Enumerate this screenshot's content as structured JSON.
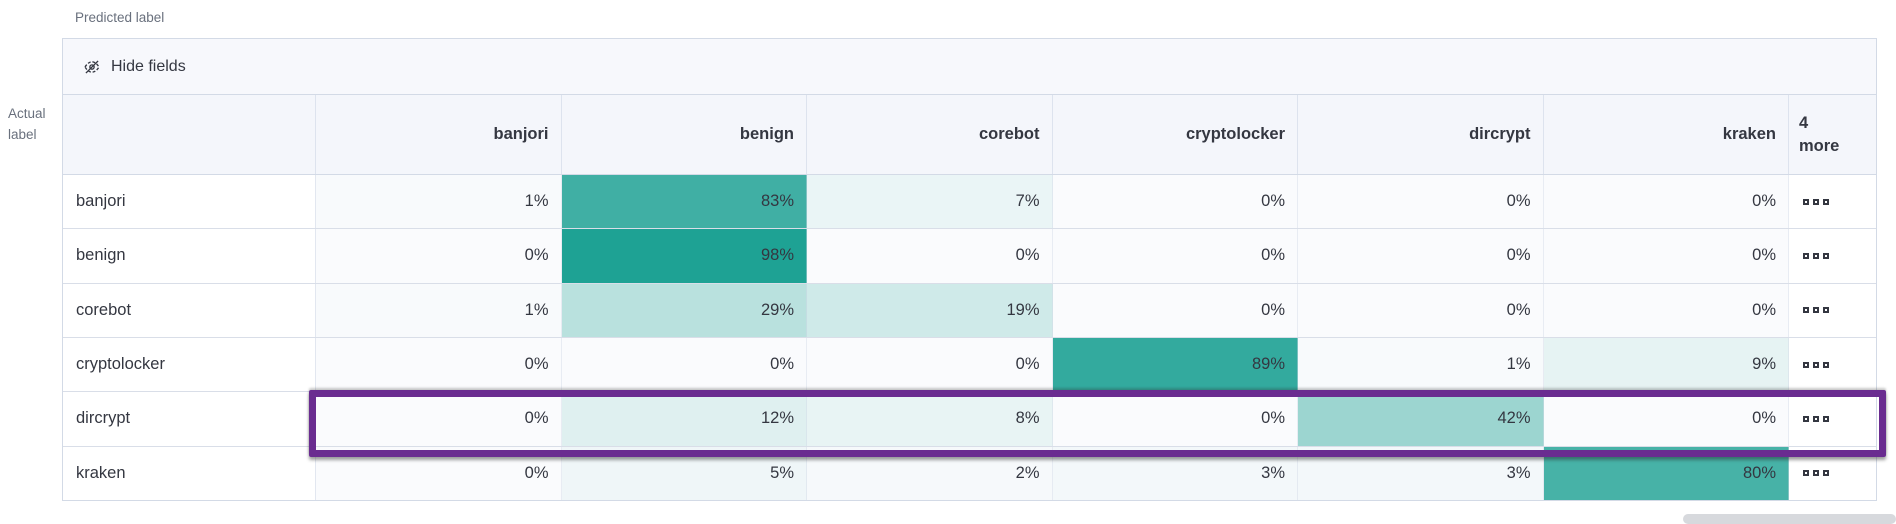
{
  "axis": {
    "predicted_label": "Predicted label",
    "actual_label_lines": [
      "Actual",
      "label"
    ]
  },
  "toolbar": {
    "hide_fields_label": "Hide fields",
    "icon": "eye-closed-icon"
  },
  "chart_data": {
    "type": "heatmap",
    "column_axis_label": "Predicted label",
    "row_axis_label": "Actual label",
    "columns": [
      "banjori",
      "benign",
      "corebot",
      "cryptolocker",
      "dircrypt",
      "kraken"
    ],
    "more_columns_header": {
      "count": "4",
      "label": "more"
    },
    "value_suffix": "%",
    "rows": [
      {
        "label": "banjori",
        "values": [
          1,
          83,
          7,
          0,
          0,
          0
        ]
      },
      {
        "label": "benign",
        "values": [
          0,
          98,
          0,
          0,
          0,
          0
        ]
      },
      {
        "label": "corebot",
        "values": [
          1,
          29,
          19,
          0,
          0,
          0
        ]
      },
      {
        "label": "cryptolocker",
        "values": [
          0,
          0,
          0,
          89,
          1,
          9
        ]
      },
      {
        "label": "dircrypt",
        "values": [
          0,
          12,
          8,
          0,
          42,
          0
        ]
      },
      {
        "label": "kraken",
        "values": [
          0,
          5,
          2,
          3,
          3,
          80
        ]
      }
    ],
    "row_actions_icon": "boxes-horizontal-icon",
    "highlighted_row": "dircrypt",
    "colors": {
      "heat_full": "#1AA092",
      "heat_zero": "#FAFBFD",
      "highlight_purple": "#6A2C90",
      "header_bg": "#F4F6FB",
      "toolbar_bg": "#F7F8FC",
      "grid_border": "#D3DAE6",
      "text": "#343741",
      "axis_text": "#69707D"
    }
  }
}
